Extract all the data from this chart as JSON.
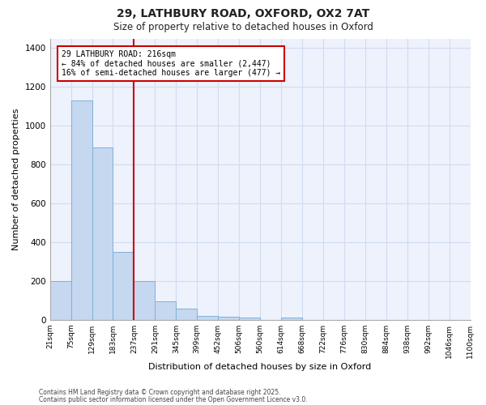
{
  "title1": "29, LATHBURY ROAD, OXFORD, OX2 7AT",
  "title2": "Size of property relative to detached houses in Oxford",
  "xlabel": "Distribution of detached houses by size in Oxford",
  "ylabel": "Number of detached properties",
  "bin_labels": [
    "21sqm",
    "75sqm",
    "129sqm",
    "183sqm",
    "237sqm",
    "291sqm",
    "345sqm",
    "399sqm",
    "452sqm",
    "506sqm",
    "560sqm",
    "614sqm",
    "668sqm",
    "722sqm",
    "776sqm",
    "830sqm",
    "884sqm",
    "938sqm",
    "992sqm",
    "1046sqm",
    "1100sqm"
  ],
  "bar_values": [
    200,
    1130,
    890,
    350,
    200,
    95,
    58,
    22,
    18,
    12,
    0,
    12,
    0,
    0,
    0,
    0,
    0,
    0,
    0,
    0
  ],
  "bar_color": "#c5d8f0",
  "bar_edge_color": "#7fb0d8",
  "grid_color": "#d0dcf0",
  "background_color": "#ffffff",
  "plot_bg_color": "#eef2fc",
  "red_line_x": 4,
  "red_line_color": "#cc0000",
  "annotation_text": "29 LATHBURY ROAD: 216sqm\n← 84% of detached houses are smaller (2,447)\n16% of semi-detached houses are larger (477) →",
  "annotation_box_color": "#ffffff",
  "annotation_border_color": "#cc0000",
  "ylim": [
    0,
    1450
  ],
  "yticks": [
    0,
    200,
    400,
    600,
    800,
    1000,
    1200,
    1400
  ],
  "footer_text1": "Contains HM Land Registry data © Crown copyright and database right 2025.",
  "footer_text2": "Contains public sector information licensed under the Open Government Licence v3.0."
}
